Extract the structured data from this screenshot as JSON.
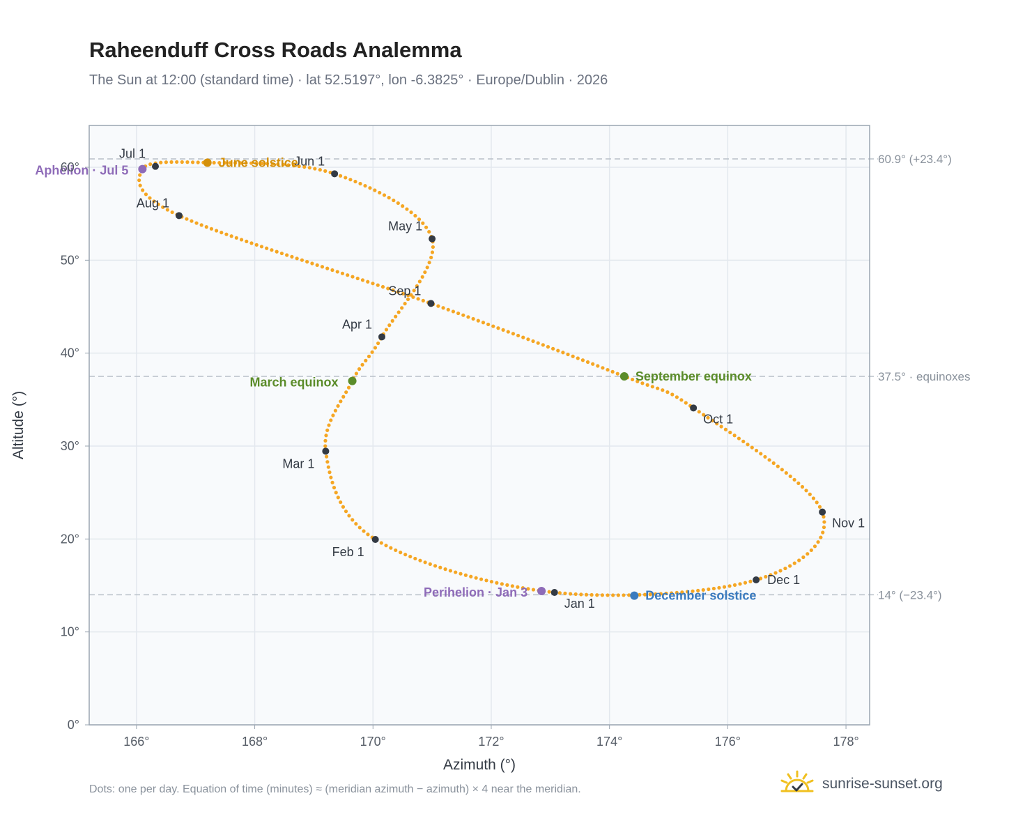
{
  "title": "Raheenduff Cross Roads Analemma",
  "subtitle": "The Sun at 12:00 (standard time) · lat 52.5197°, lon -6.3825° · Europe/Dublin · 2026",
  "footnote": "Dots: one per day. Equation of time (minutes) ≈ (meridian azimuth − azimuth) × 4 near the meridian.",
  "brand": {
    "text": "sunrise-sunset.org",
    "icon": "sun-check-icon"
  },
  "colors": {
    "path": "#f5a623",
    "month_dot": "#333a44",
    "solstice_june": "#d4900a",
    "solstice_december": "#3b7bbf",
    "equinox": "#5b8c2a",
    "apsis": "#8e6bb8",
    "plot_bg": "#f8fafc",
    "grid": "#e3e8ee",
    "frame": "#9aa5b1",
    "ref_line": "#b8c0c8"
  },
  "chart_data": {
    "type": "scatter",
    "xlabel": "Azimuth (°)",
    "ylabel": "Altitude (°)",
    "xlim": [
      165.2,
      178.4
    ],
    "ylim": [
      0,
      64.5
    ],
    "x_ticks": [
      166,
      168,
      170,
      172,
      174,
      176,
      178
    ],
    "x_tick_labels": [
      "166°",
      "168°",
      "170°",
      "172°",
      "174°",
      "176°",
      "178°"
    ],
    "y_ticks": [
      0,
      10,
      20,
      30,
      40,
      50,
      60
    ],
    "y_tick_labels": [
      "0°",
      "10°",
      "20°",
      "30°",
      "40°",
      "50°",
      "60°"
    ],
    "grid": true,
    "reference_lines": [
      {
        "y": 60.9,
        "label": "60.9° (+23.4°)"
      },
      {
        "y": 37.5,
        "label": "37.5° · equinoxes"
      },
      {
        "y": 14.0,
        "label": "14° (−23.4°)"
      }
    ],
    "path_anchors": [
      {
        "x": 173.07,
        "y": 14.25
      },
      {
        "x": 170.04,
        "y": 19.95
      },
      {
        "x": 169.2,
        "y": 29.45
      },
      {
        "x": 169.65,
        "y": 37.0
      },
      {
        "x": 170.15,
        "y": 41.75
      },
      {
        "x": 171.0,
        "y": 52.3
      },
      {
        "x": 169.35,
        "y": 59.3
      },
      {
        "x": 167.2,
        "y": 60.5
      },
      {
        "x": 166.1,
        "y": 59.8
      },
      {
        "x": 166.72,
        "y": 54.8
      },
      {
        "x": 170.98,
        "y": 45.35
      },
      {
        "x": 174.25,
        "y": 37.5
      },
      {
        "x": 175.42,
        "y": 34.1
      },
      {
        "x": 177.6,
        "y": 22.9
      },
      {
        "x": 176.48,
        "y": 15.6
      },
      {
        "x": 173.07,
        "y": 14.25
      }
    ],
    "month_points": [
      {
        "label": "Jan 1",
        "x": 173.07,
        "y": 14.25,
        "pos": "below-right"
      },
      {
        "label": "Feb 1",
        "x": 170.04,
        "y": 19.95,
        "pos": "below-left"
      },
      {
        "label": "Mar 1",
        "x": 169.2,
        "y": 29.45,
        "pos": "below-left"
      },
      {
        "label": "Apr 1",
        "x": 170.15,
        "y": 41.75,
        "pos": "above-left"
      },
      {
        "label": "May 1",
        "x": 171.0,
        "y": 52.3,
        "pos": "above-left"
      },
      {
        "label": "Jun 1",
        "x": 169.35,
        "y": 59.3,
        "pos": "above-left"
      },
      {
        "label": "Jul 1",
        "x": 166.32,
        "y": 60.1,
        "pos": "above-left"
      },
      {
        "label": "Aug 1",
        "x": 166.72,
        "y": 54.8,
        "pos": "above-left"
      },
      {
        "label": "Sep 1",
        "x": 170.98,
        "y": 45.35,
        "pos": "above-left"
      },
      {
        "label": "Oct 1",
        "x": 175.42,
        "y": 34.1,
        "pos": "below-right"
      },
      {
        "label": "Nov 1",
        "x": 177.6,
        "y": 22.9,
        "pos": "below-right"
      },
      {
        "label": "Dec 1",
        "x": 176.48,
        "y": 15.6,
        "pos": "right"
      }
    ],
    "special_points": [
      {
        "label": "June solstice",
        "x": 167.2,
        "y": 60.5,
        "kind": "solstice_june",
        "pos": "right"
      },
      {
        "label": "December solstice",
        "x": 174.42,
        "y": 13.9,
        "kind": "solstice_december",
        "pos": "right"
      },
      {
        "label": "March equinox",
        "x": 169.65,
        "y": 37.0,
        "kind": "equinox",
        "pos": "left"
      },
      {
        "label": "September equinox",
        "x": 174.25,
        "y": 37.5,
        "kind": "equinox",
        "pos": "right"
      },
      {
        "label": "Aphelion · Jul 5",
        "x": 166.1,
        "y": 59.8,
        "kind": "apsis",
        "pos": "left"
      },
      {
        "label": "Perihelion · Jan 3",
        "x": 172.85,
        "y": 14.4,
        "kind": "apsis",
        "pos": "left"
      }
    ]
  }
}
